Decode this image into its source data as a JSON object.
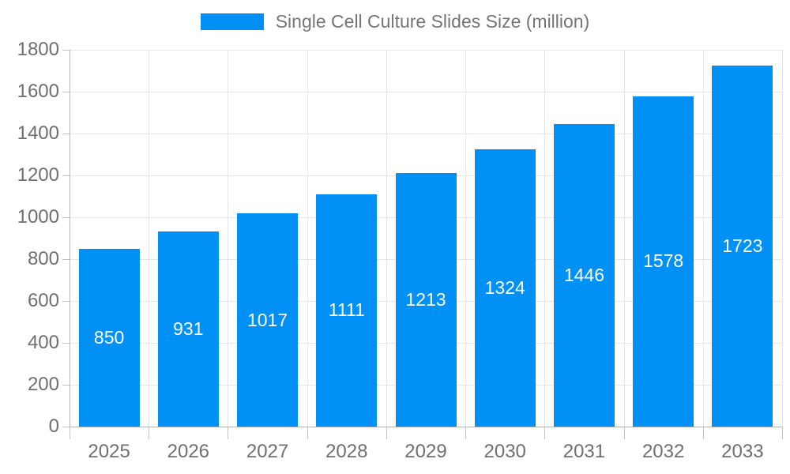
{
  "legend": {
    "label": "Single Cell Culture Slides Size (million)"
  },
  "chart_data": {
    "type": "bar",
    "title": "Single Cell Culture Slides Size (million)",
    "categories": [
      "2025",
      "2026",
      "2027",
      "2028",
      "2029",
      "2030",
      "2031",
      "2032",
      "2033"
    ],
    "values": [
      850,
      931,
      1017,
      1111,
      1213,
      1324,
      1446,
      1578,
      1723
    ],
    "xlabel": "",
    "ylabel": "",
    "ylim": [
      0,
      1800
    ],
    "ytick_interval": 200,
    "grid": "both",
    "legend_position": "top-center",
    "value_labels": "inside-center-white"
  },
  "colors": {
    "bar": "#0190f5",
    "grid": "#e6e6e6",
    "axis": "#b3b3b3",
    "tick": "#c4c4c4",
    "axis_text": "#6f6f6f",
    "legend_text": "#757575",
    "value_text": "#ffffff",
    "background": "#ffffff"
  }
}
